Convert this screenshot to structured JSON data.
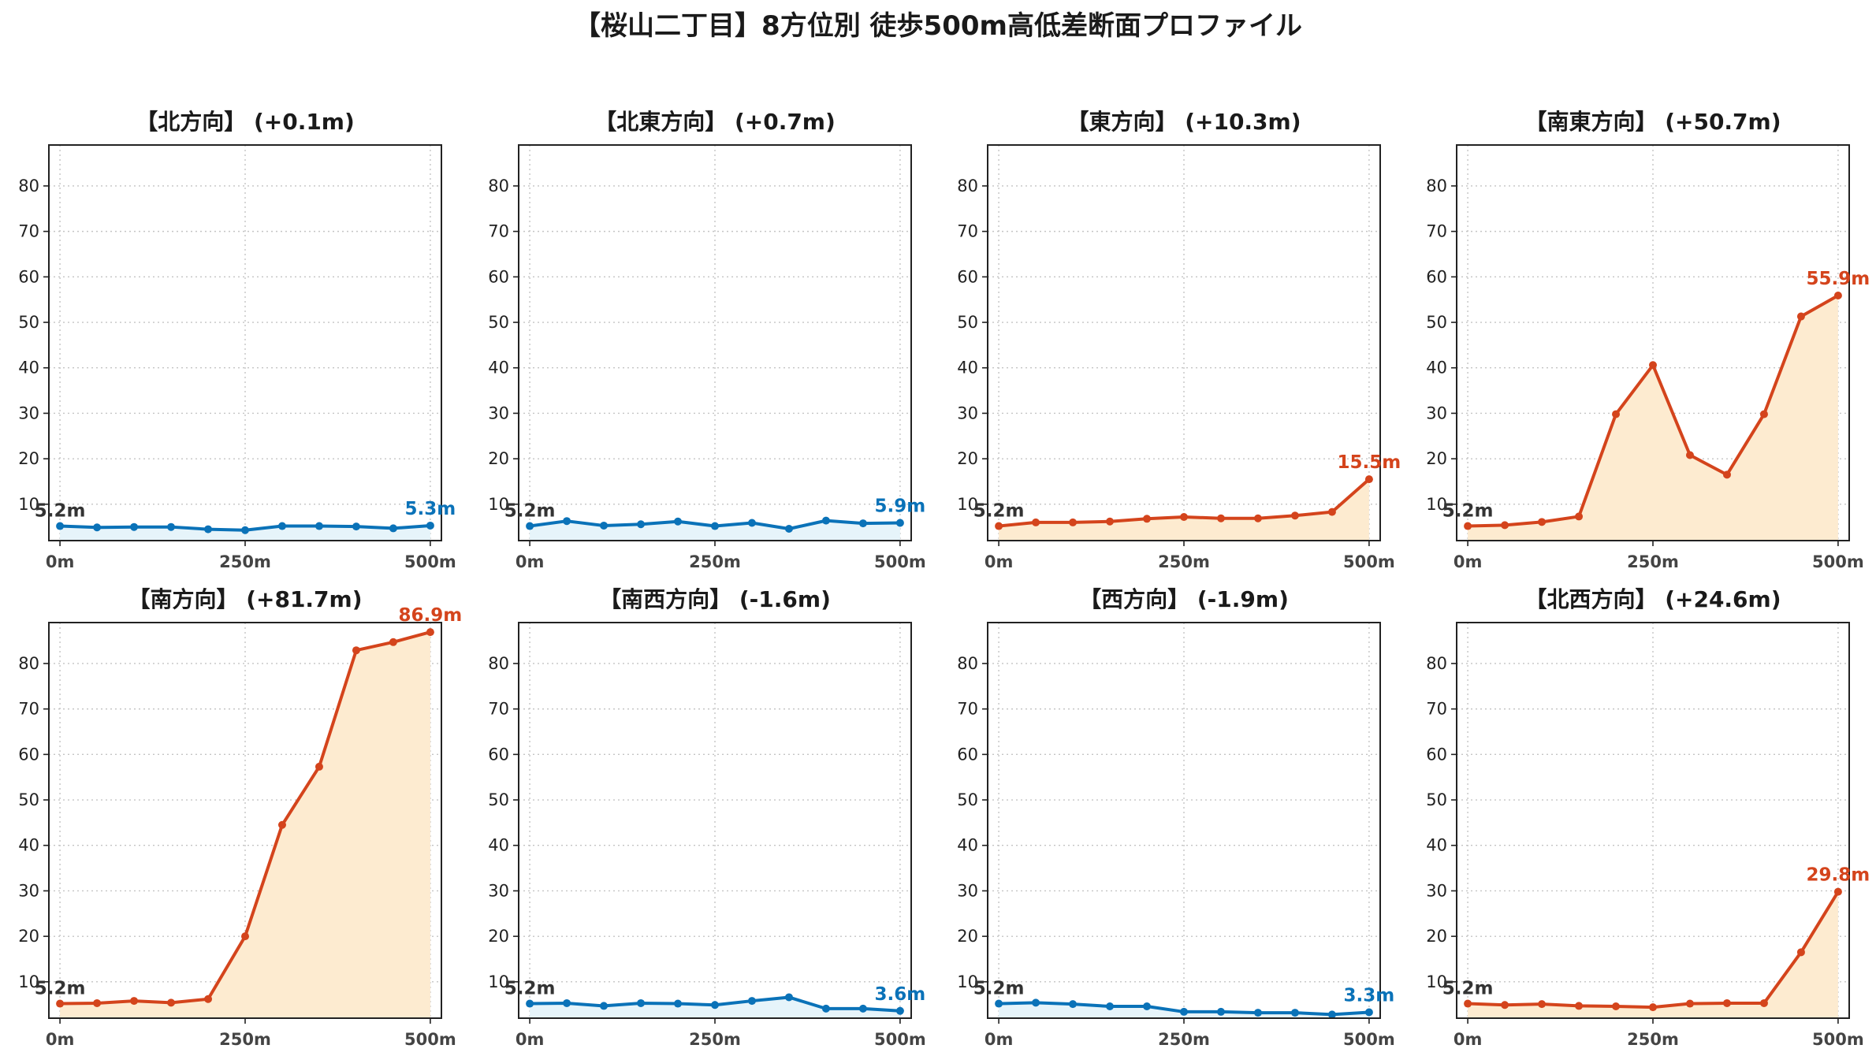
{
  "chart_data": {
    "suptitle": "【桜山二丁目】8方位別 徒歩500m高低差断面プロファイル",
    "colors": {
      "up": "#d4441c",
      "up_fill": "#fdebd0",
      "flat": "#0a72b8",
      "flat_fill": "#e6f4fa",
      "start_label": "#333333"
    },
    "x": [
      0,
      50,
      100,
      150,
      200,
      250,
      300,
      350,
      400,
      450,
      500
    ],
    "xticks": [
      0,
      250,
      500
    ],
    "xtick_labels": [
      "0m",
      "250m",
      "500m"
    ],
    "ylim": [
      2,
      89
    ],
    "yticks": [
      10,
      20,
      30,
      40,
      50,
      60,
      70,
      80
    ],
    "ytick_labels": [
      "10",
      "20",
      "30",
      "40",
      "50",
      "60",
      "70",
      "80"
    ],
    "grid": true,
    "panels": [
      {
        "type": "line",
        "title": "【北方向】 (+0.1m)",
        "trend": "flat",
        "start_label": "5.2m",
        "end_label": "5.3m",
        "y": [
          5.2,
          4.9,
          5.0,
          5.0,
          4.5,
          4.3,
          5.2,
          5.2,
          5.1,
          4.7,
          5.3
        ]
      },
      {
        "type": "line",
        "title": "【北東方向】 (+0.7m)",
        "trend": "flat",
        "start_label": "5.2m",
        "end_label": "5.9m",
        "y": [
          5.2,
          6.3,
          5.3,
          5.6,
          6.2,
          5.2,
          5.9,
          4.6,
          6.4,
          5.8,
          5.9
        ]
      },
      {
        "type": "area",
        "title": "【東方向】 (+10.3m)",
        "trend": "up",
        "start_label": "5.2m",
        "end_label": "15.5m",
        "y": [
          5.2,
          6.0,
          6.0,
          6.2,
          6.8,
          7.2,
          6.9,
          6.9,
          7.5,
          8.3,
          15.5
        ]
      },
      {
        "type": "area",
        "title": "【南東方向】 (+50.7m)",
        "trend": "up",
        "start_label": "5.2m",
        "end_label": "55.9m",
        "y": [
          5.2,
          5.4,
          6.1,
          7.3,
          29.8,
          40.6,
          20.8,
          16.5,
          29.8,
          51.3,
          55.9
        ]
      },
      {
        "type": "area",
        "title": "【南方向】 (+81.7m)",
        "trend": "up",
        "start_label": "5.2m",
        "end_label": "86.9m",
        "y": [
          5.2,
          5.3,
          5.8,
          5.4,
          6.2,
          20.0,
          44.5,
          57.3,
          82.9,
          84.7,
          86.9
        ]
      },
      {
        "type": "line",
        "title": "【南西方向】 (-1.6m)",
        "trend": "flat",
        "start_label": "5.2m",
        "end_label": "3.6m",
        "y": [
          5.2,
          5.3,
          4.7,
          5.3,
          5.2,
          4.9,
          5.8,
          6.6,
          4.1,
          4.1,
          3.6
        ]
      },
      {
        "type": "line",
        "title": "【西方向】 (-1.9m)",
        "trend": "flat",
        "start_label": "5.2m",
        "end_label": "3.3m",
        "y": [
          5.2,
          5.4,
          5.1,
          4.6,
          4.6,
          3.4,
          3.4,
          3.2,
          3.2,
          2.8,
          3.3
        ]
      },
      {
        "type": "area",
        "title": "【北西方向】 (+24.6m)",
        "trend": "up",
        "start_label": "5.2m",
        "end_label": "29.8m",
        "y": [
          5.2,
          4.9,
          5.1,
          4.7,
          4.6,
          4.4,
          5.2,
          5.3,
          5.3,
          16.5,
          29.8
        ]
      }
    ]
  }
}
